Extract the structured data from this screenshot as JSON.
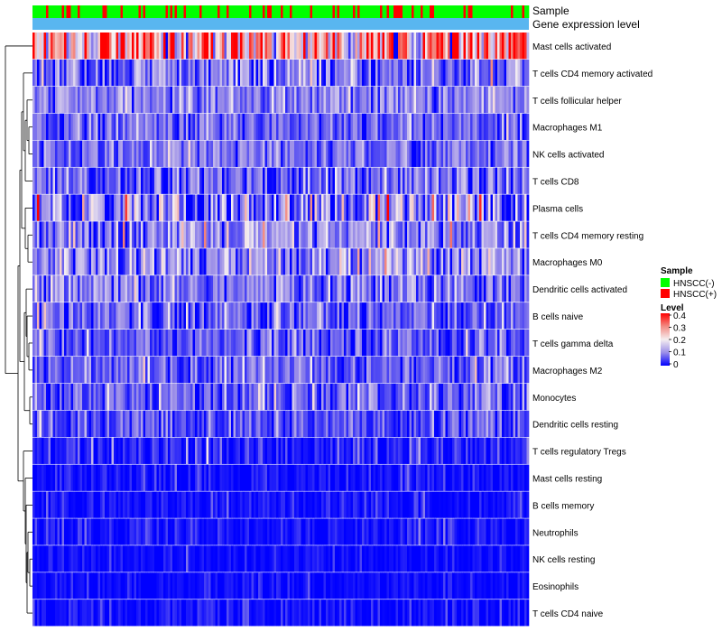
{
  "chart_data": {
    "type": "heatmap",
    "title": "",
    "n_samples": 220,
    "annotation_tracks": [
      {
        "label": "Sample"
      },
      {
        "label": "Gene expression level"
      }
    ],
    "rows": [
      {
        "name": "Mast cells activated",
        "mean": 0.26,
        "spread": 0.13
      },
      {
        "name": "T cells CD4 memory activated",
        "mean": 0.07,
        "spread": 0.06
      },
      {
        "name": "T cells follicular helper",
        "mean": 0.09,
        "spread": 0.04
      },
      {
        "name": "Macrophages M1",
        "mean": 0.07,
        "spread": 0.04
      },
      {
        "name": "NK cells activated",
        "mean": 0.07,
        "spread": 0.04
      },
      {
        "name": "T cells CD8",
        "mean": 0.06,
        "spread": 0.05
      },
      {
        "name": "Plasma cells",
        "mean": 0.09,
        "spread": 0.09
      },
      {
        "name": "T cells CD4 memory resting",
        "mean": 0.09,
        "spread": 0.06
      },
      {
        "name": "Macrophages M0",
        "mean": 0.09,
        "spread": 0.07
      },
      {
        "name": "Dendritic cells activated",
        "mean": 0.08,
        "spread": 0.05
      },
      {
        "name": "B cells naive",
        "mean": 0.07,
        "spread": 0.05
      },
      {
        "name": "T cells gamma delta",
        "mean": 0.06,
        "spread": 0.04
      },
      {
        "name": "Macrophages M2",
        "mean": 0.06,
        "spread": 0.04
      },
      {
        "name": "Monocytes",
        "mean": 0.06,
        "spread": 0.04
      },
      {
        "name": "Dendritic cells resting",
        "mean": 0.05,
        "spread": 0.04
      },
      {
        "name": "T cells regulatory  Tregs",
        "mean": 0.02,
        "spread": 0.03
      },
      {
        "name": "Mast cells resting",
        "mean": 0.01,
        "spread": 0.02
      },
      {
        "name": "B cells memory",
        "mean": 0.01,
        "spread": 0.02
      },
      {
        "name": "Neutrophils",
        "mean": 0.01,
        "spread": 0.02
      },
      {
        "name": "NK cells resting",
        "mean": 0.005,
        "spread": 0.015
      },
      {
        "name": "Eosinophils",
        "mean": 0.005,
        "spread": 0.015
      },
      {
        "name": "T cells CD4 naive",
        "mean": 0.01,
        "spread": 0.02
      }
    ],
    "sample_groups": [
      "HNSCC(-)",
      "HNSCC(+)"
    ],
    "sample_group_fraction_positive": 0.25,
    "color_scale": {
      "min": 0,
      "max": 0.4,
      "stops": [
        {
          "value": 0,
          "color": "#0000ff"
        },
        {
          "value": 0.1,
          "color": "#9c8fe8"
        },
        {
          "value": 0.2,
          "color": "#f5eef0"
        },
        {
          "value": 0.3,
          "color": "#f28c84"
        },
        {
          "value": 0.4,
          "color": "#ff0000"
        }
      ]
    },
    "legend": {
      "position": "right",
      "sample_title": "Sample",
      "sample_entries": [
        {
          "label": "HNSCC(-)",
          "color": "#00ff00"
        },
        {
          "label": "HNSCC(+)",
          "color": "#ff0000"
        }
      ],
      "level_title": "Level",
      "level_ticks": [
        "0.4",
        "0.3",
        "0.2",
        "0.1",
        "0"
      ]
    },
    "expression_track_color": "#59b6f0"
  }
}
